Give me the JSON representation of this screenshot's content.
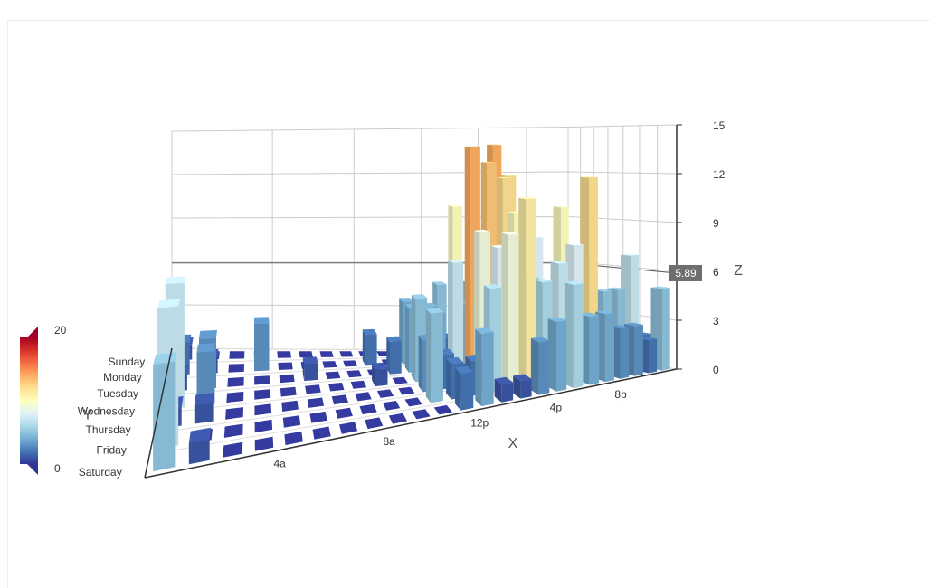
{
  "chart_data": {
    "type": "bar3d",
    "categories": [
      null,
      null,
      null,
      null,
      "4a",
      null,
      null,
      null,
      "8a",
      null,
      null,
      null,
      "12p",
      null,
      null,
      null,
      "4p",
      null,
      null,
      null,
      "8p",
      null,
      null,
      null
    ],
    "y_categories": [
      "Saturday",
      "Friday",
      "Thursday",
      "Wednesday",
      "Tuesday",
      "Monday",
      "Sunday"
    ],
    "x_name": "X",
    "y_name": "Y",
    "z_name": "Z",
    "values": [
      [
        5,
        1,
        0,
        0,
        0,
        0,
        0,
        0,
        0,
        0,
        0,
        2,
        4,
        1,
        1,
        3,
        4,
        6,
        4,
        4,
        3,
        3,
        2,
        5
      ],
      [
        7,
        0,
        0,
        0,
        0,
        0,
        0,
        0,
        0,
        0,
        5,
        2,
        2,
        6,
        9,
        11,
        6,
        7,
        8,
        12,
        5,
        5,
        7,
        2
      ],
      [
        1,
        1,
        0,
        0,
        0,
        0,
        0,
        0,
        0,
        0,
        3,
        2,
        1,
        9,
        8,
        10,
        6,
        5,
        5,
        5,
        7,
        4,
        2,
        4
      ],
      [
        7,
        3,
        0,
        0,
        0,
        0,
        0,
        0,
        1,
        0,
        5,
        4,
        7,
        14,
        13,
        12,
        9,
        5,
        5,
        10,
        6,
        4,
        4,
        1
      ],
      [
        1,
        3,
        0,
        0,
        0,
        1,
        0,
        0,
        0,
        2,
        4,
        4,
        2,
        4,
        4,
        14,
        12,
        1,
        8,
        5,
        3,
        7,
        3,
        0
      ],
      [
        2,
        1,
        0,
        3,
        0,
        0,
        0,
        0,
        2,
        0,
        4,
        1,
        5,
        10,
        5,
        7,
        11,
        6,
        0,
        5,
        3,
        4,
        2,
        0
      ],
      [
        1,
        0,
        0,
        0,
        0,
        0,
        0,
        0,
        0,
        0,
        1,
        0,
        2,
        1,
        3,
        4,
        0,
        0,
        0,
        0,
        1,
        2,
        2,
        6
      ]
    ],
    "zlim": [
      0,
      15
    ],
    "zticks": [
      0,
      3,
      6,
      9,
      12,
      15
    ],
    "grid": true,
    "visual_map": {
      "min": 0,
      "max": 20,
      "colors": [
        "#313695",
        "#4575b4",
        "#74add1",
        "#abd9e9",
        "#e0f3f8",
        "#ffffbf",
        "#fee090",
        "#fdae61",
        "#f46d43",
        "#d73027",
        "#a50026"
      ]
    },
    "axis_pointer": 5.89
  }
}
